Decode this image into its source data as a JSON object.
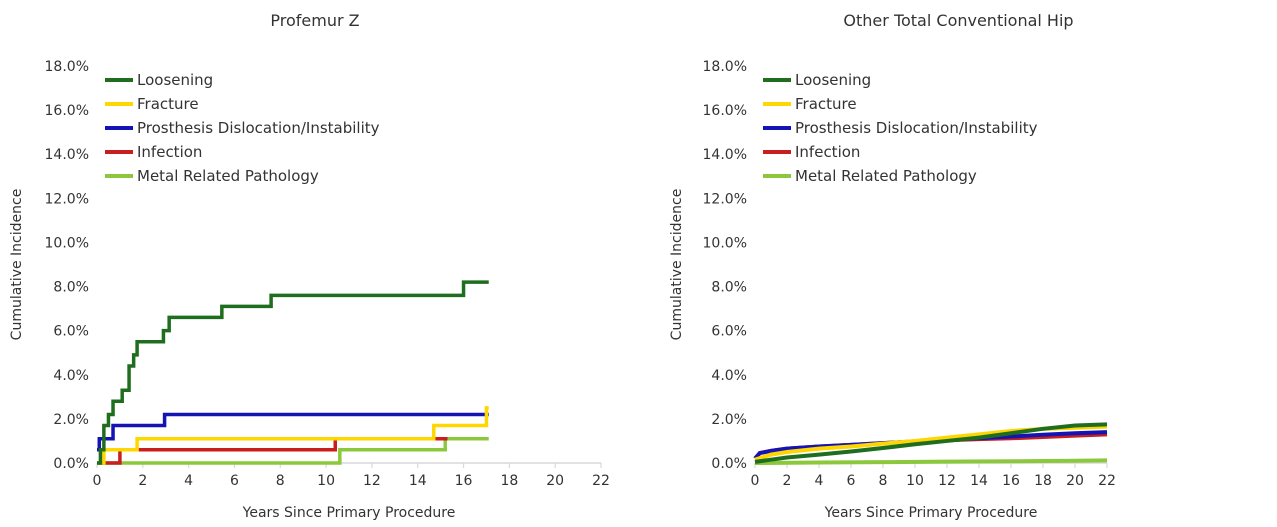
{
  "chart_data": [
    {
      "type": "line",
      "title": "Profemur Z",
      "xlabel": "Years Since Primary Procedure",
      "ylabel": "Cumulative Incidence",
      "xlim": [
        0,
        22
      ],
      "ylim": [
        0,
        18
      ],
      "xticks": [
        "0",
        "2",
        "4",
        "6",
        "8",
        "10",
        "12",
        "14",
        "16",
        "18",
        "20",
        "22"
      ],
      "yticks": [
        "0.0%",
        "2.0%",
        "4.0%",
        "6.0%",
        "8.0%",
        "10.0%",
        "12.0%",
        "14.0%",
        "16.0%",
        "18.0%"
      ],
      "step": true,
      "legend_position": "top-left",
      "series": [
        {
          "name": "Loosening",
          "color": "#1f6e1f",
          "x": [
            0,
            0.15,
            0.3,
            0.5,
            0.7,
            1.1,
            1.4,
            1.6,
            1.75,
            2.1,
            2.9,
            3.15,
            5.45,
            7.6,
            16.0,
            17.1
          ],
          "y": [
            0,
            0.6,
            1.7,
            2.2,
            2.8,
            3.3,
            4.4,
            4.9,
            5.5,
            5.5,
            6.0,
            6.6,
            7.1,
            7.6,
            8.2,
            8.2
          ]
        },
        {
          "name": "Fracture",
          "color": "#ffd700",
          "x": [
            0,
            0.3,
            1.75,
            14.7,
            17.0,
            17.1
          ],
          "y": [
            0,
            0.6,
            1.1,
            1.7,
            2.5,
            2.5
          ]
        },
        {
          "name": "Prosthesis Dislocation/Instability",
          "color": "#1414b4",
          "x": [
            0,
            0.1,
            0.7,
            2.95,
            17.1
          ],
          "y": [
            0.6,
            1.1,
            1.7,
            2.2,
            2.2
          ]
        },
        {
          "name": "Infection",
          "color": "#c81e1e",
          "x": [
            0,
            1.0,
            10.4,
            15.3
          ],
          "y": [
            0,
            0.6,
            1.1,
            1.1
          ]
        },
        {
          "name": "Metal Related Pathology",
          "color": "#8cc83c",
          "x": [
            0,
            10.6,
            15.2,
            17.1
          ],
          "y": [
            0,
            0.6,
            1.1,
            1.1
          ]
        }
      ]
    },
    {
      "type": "line",
      "title": "Other Total Conventional Hip",
      "xlabel": "Years Since Primary Procedure",
      "ylabel": "Cumulative Incidence",
      "xlim": [
        0,
        22
      ],
      "ylim": [
        0,
        18
      ],
      "xticks": [
        "0",
        "2",
        "4",
        "6",
        "8",
        "10",
        "12",
        "14",
        "16",
        "18",
        "20",
        "22"
      ],
      "yticks": [
        "0.0%",
        "2.0%",
        "4.0%",
        "6.0%",
        "8.0%",
        "10.0%",
        "12.0%",
        "14.0%",
        "16.0%",
        "18.0%"
      ],
      "step": false,
      "legend_position": "top-left",
      "series": [
        {
          "name": "Loosening",
          "color": "#1f6e1f",
          "x": [
            0,
            1,
            2,
            4,
            6,
            8,
            10,
            12,
            14,
            16,
            18,
            20,
            22
          ],
          "y": [
            0.05,
            0.15,
            0.25,
            0.38,
            0.52,
            0.68,
            0.85,
            1.0,
            1.15,
            1.35,
            1.55,
            1.7,
            1.75
          ]
        },
        {
          "name": "Fracture",
          "color": "#ffd700",
          "x": [
            0,
            1,
            2,
            4,
            6,
            8,
            10,
            12,
            14,
            16,
            18,
            20,
            22
          ],
          "y": [
            0.15,
            0.38,
            0.5,
            0.65,
            0.75,
            0.88,
            1.0,
            1.15,
            1.3,
            1.45,
            1.55,
            1.6,
            1.65
          ]
        },
        {
          "name": "Prosthesis Dislocation/Instability",
          "color": "#1414b4",
          "x": [
            0,
            0.3,
            1,
            2,
            4,
            6,
            8,
            10,
            12,
            14,
            16,
            18,
            20,
            22
          ],
          "y": [
            0.2,
            0.45,
            0.55,
            0.65,
            0.75,
            0.82,
            0.9,
            0.98,
            1.05,
            1.12,
            1.2,
            1.28,
            1.35,
            1.4
          ]
        },
        {
          "name": "Infection",
          "color": "#c81e1e",
          "x": [
            0,
            0.3,
            1,
            2,
            4,
            6,
            8,
            10,
            12,
            14,
            16,
            18,
            20,
            22
          ],
          "y": [
            0.2,
            0.45,
            0.55,
            0.65,
            0.75,
            0.82,
            0.9,
            0.97,
            1.03,
            1.08,
            1.12,
            1.18,
            1.24,
            1.3
          ]
        },
        {
          "name": "Metal Related Pathology",
          "color": "#8cc83c",
          "x": [
            0,
            4,
            8,
            12,
            16,
            20,
            22
          ],
          "y": [
            0.0,
            0.02,
            0.04,
            0.06,
            0.08,
            0.1,
            0.12
          ]
        }
      ]
    }
  ]
}
